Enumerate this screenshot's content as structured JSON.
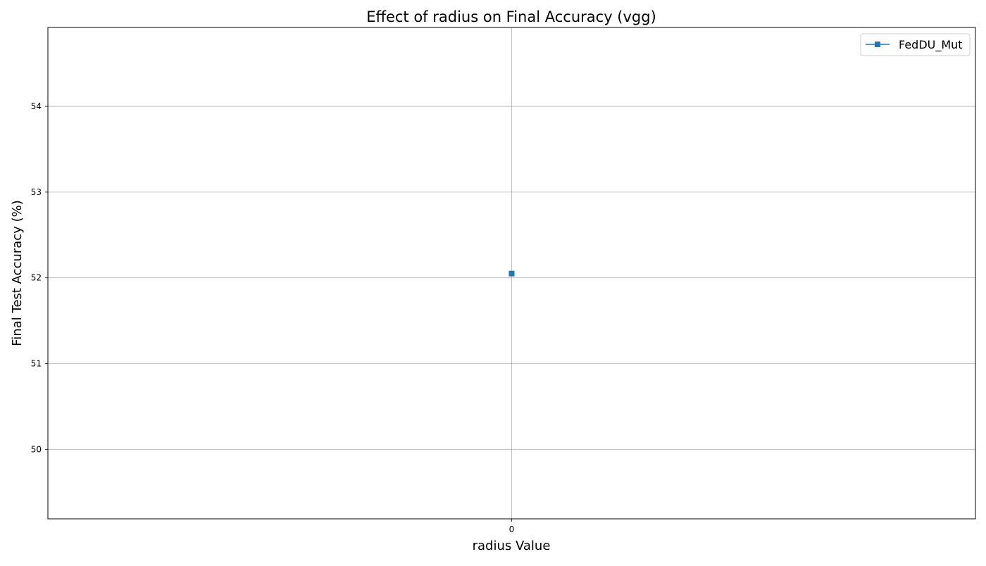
{
  "chart_data": {
    "type": "line",
    "title": "Effect of radius on Final Accuracy (vgg)",
    "xlabel": "radius Value",
    "ylabel": "Final Test Accuracy (%)",
    "x_categories": [
      "0"
    ],
    "yticks": [
      50,
      51,
      52,
      53,
      54
    ],
    "ylim": [
      49.19,
      54.92
    ],
    "grid": true,
    "legend_position": "top-right",
    "series": [
      {
        "name": "FedDU_Mut",
        "color": "#1f77b4",
        "marker": "square",
        "x": [
          "0"
        ],
        "y": [
          52.05
        ]
      }
    ]
  }
}
